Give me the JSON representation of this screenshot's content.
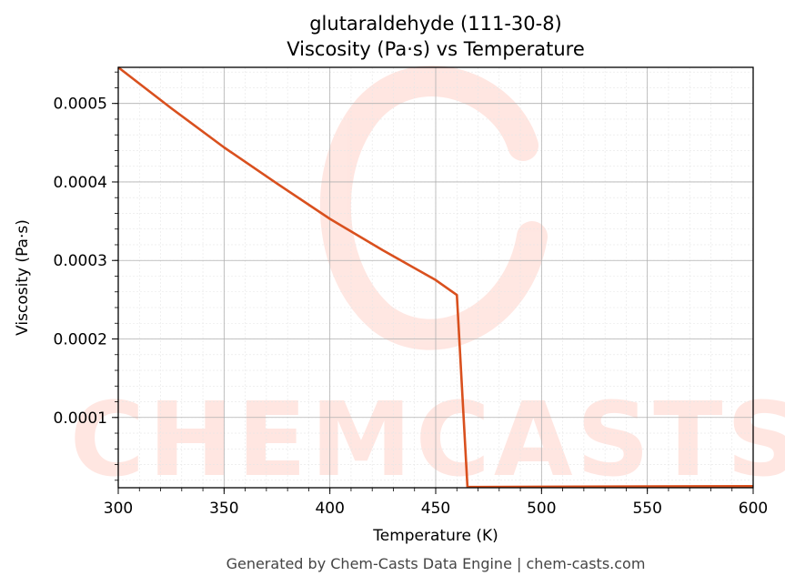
{
  "chart_data": {
    "type": "line",
    "title": "glutaraldehyde (111-30-8)",
    "subtitle": "Viscosity (Pa·s) vs Temperature",
    "xlabel": "Temperature (K)",
    "ylabel": "Viscosity (Pa·s)",
    "xlim": [
      300,
      600
    ],
    "ylim": [
      1.05e-05,
      0.000546
    ],
    "x_ticks": [
      300,
      350,
      400,
      450,
      500,
      550,
      600
    ],
    "x_tick_labels": [
      "300",
      "350",
      "400",
      "450",
      "500",
      "550",
      "600"
    ],
    "y_ticks": [
      0.0001,
      0.0002,
      0.0003,
      0.0004,
      0.0005
    ],
    "y_tick_labels": [
      "0.0001",
      "0.0002",
      "0.0003",
      "0.0004",
      "0.0005"
    ],
    "grid": true,
    "series": [
      {
        "color": "#d9501e",
        "x": [
          300,
          325,
          350,
          375,
          400,
          425,
          450,
          460,
          465,
          470,
          500,
          550,
          600
        ],
        "y": [
          0.000546,
          0.000494,
          0.000444,
          0.000398,
          0.000353,
          0.000313,
          0.000275,
          0.000256,
          1.15e-05,
          1.15e-05,
          1.18e-05,
          1.22e-05,
          1.25e-05
        ]
      }
    ],
    "watermark": "CHEMCASTS",
    "footer": "Generated by Chem-Casts Data Engine | chem-casts.com"
  }
}
